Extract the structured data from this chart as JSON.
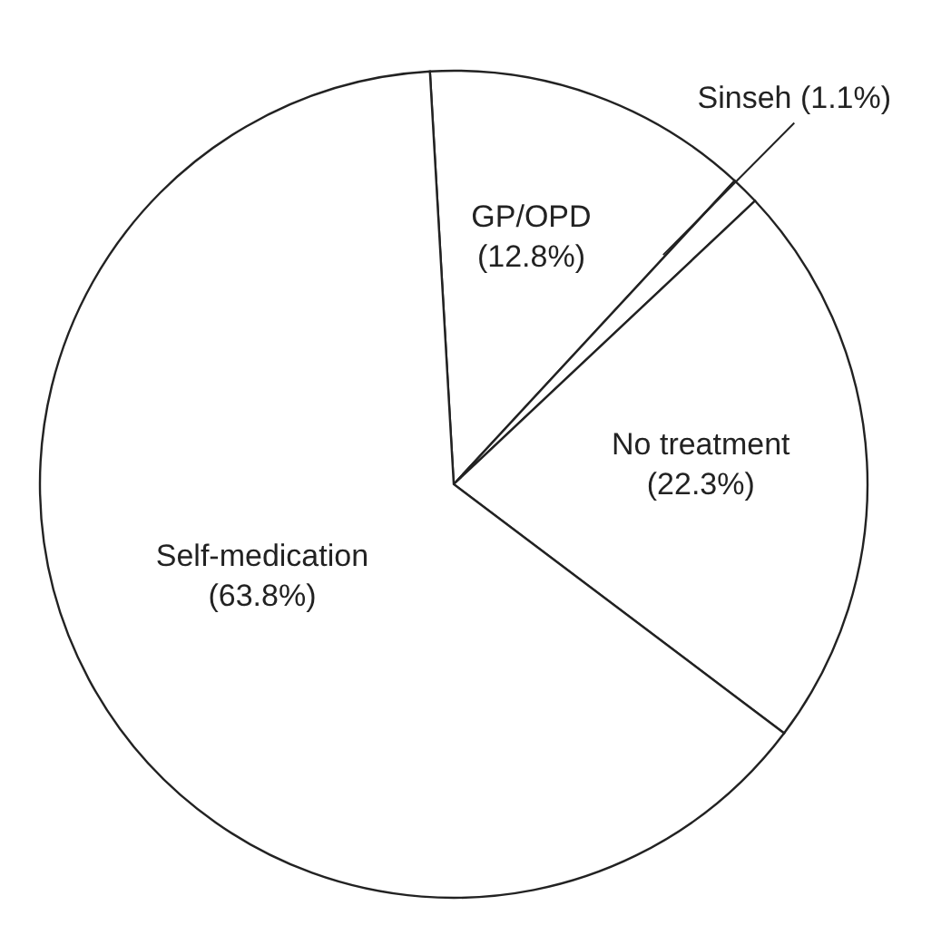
{
  "chart_data": {
    "type": "pie",
    "categories": [
      "GP/OPD",
      "Sinseh",
      "No treatment",
      "Self-medication"
    ],
    "values": [
      12.8,
      1.1,
      22.3,
      63.8
    ],
    "value_labels": [
      "(12.8%)",
      "(1.1%)",
      "(22.3%)",
      "(63.8%)"
    ],
    "colors": [
      "#ffffff",
      "#ffffff",
      "#ffffff",
      "#ffffff"
    ]
  }
}
